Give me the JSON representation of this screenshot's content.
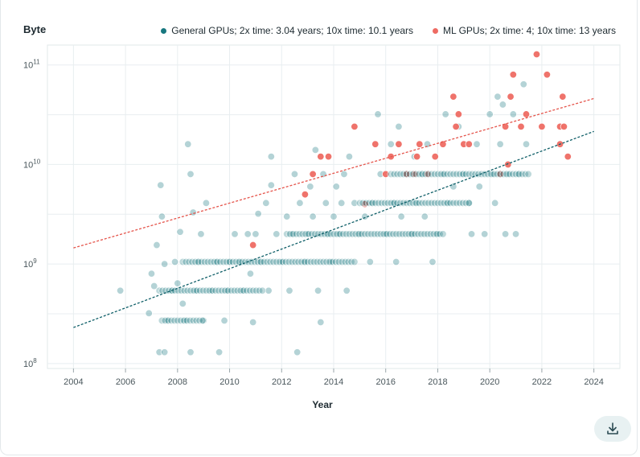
{
  "chart_data": {
    "type": "scatter",
    "title": "",
    "xlabel": "Year",
    "ylabel": "Byte",
    "xlim": [
      2003,
      2025
    ],
    "ylim_log10": [
      7.95,
      11.2
    ],
    "x_ticks": [
      2004,
      2006,
      2008,
      2010,
      2012,
      2014,
      2016,
      2018,
      2020,
      2022,
      2024
    ],
    "x_tick_labels": [
      "2004",
      "2006",
      "2008",
      "2010",
      "2012",
      "2014",
      "2016",
      "2018",
      "2020",
      "2022",
      "2024"
    ],
    "y_ticks": [
      {
        "exp": 8,
        "base": "10",
        "sup": "8"
      },
      {
        "exp": 9,
        "base": "10",
        "sup": "9"
      },
      {
        "exp": 10,
        "base": "10",
        "sup": "10"
      },
      {
        "exp": 11,
        "base": "10",
        "sup": "11"
      }
    ],
    "legend": [
      {
        "name": "General GPUs; 2x time: 3.04 years; 10x time: 10.1 years",
        "color": "#17777f"
      },
      {
        "name": "ML GPUs; 2x time: 4; 10x time: 13 years",
        "color": "#ee6b63"
      }
    ],
    "series": [
      {
        "name": "General GPUs",
        "color": "#17777f",
        "trend": {
          "x": [
            2004,
            2024
          ],
          "y": [
            230000000.0,
            21500000000.0
          ]
        },
        "points": [
          [
            2005.8,
            540000000.0
          ],
          [
            2006.9,
            320000000.0
          ],
          [
            2007.0,
            800000000.0
          ],
          [
            2007.1,
            600000000.0
          ],
          [
            2007.2,
            1550000000.0
          ],
          [
            2007.3,
            130000000.0
          ],
          [
            2007.35,
            6200000000.0
          ],
          [
            2007.4,
            3000000000.0
          ],
          [
            2007.5,
            130000000.0
          ],
          [
            2007.5,
            1000000000.0
          ],
          [
            2007.6,
            270000000.0
          ],
          [
            2007.8,
            540000000.0
          ],
          [
            2007.9,
            1050000000.0
          ],
          [
            2008.0,
            640000000.0
          ],
          [
            2008.1,
            2100000000.0
          ],
          [
            2008.2,
            400000000.0
          ],
          [
            2008.3,
            270000000.0
          ],
          [
            2008.4,
            16000000000.0
          ],
          [
            2008.5,
            130000000.0
          ],
          [
            2008.5,
            8000000000.0
          ],
          [
            2008.6,
            3300000000.0
          ],
          [
            2008.7,
            540000000.0
          ],
          [
            2008.8,
            1050000000.0
          ],
          [
            2008.9,
            2000000000.0
          ],
          [
            2009.0,
            270000000.0
          ],
          [
            2009.1,
            4100000000.0
          ],
          [
            2009.3,
            540000000.0
          ],
          [
            2009.5,
            1050000000.0
          ],
          [
            2009.6,
            130000000.0
          ],
          [
            2009.8,
            270000000.0
          ],
          [
            2009.9,
            540000000.0
          ],
          [
            2010.0,
            1050000000.0
          ],
          [
            2010.2,
            2000000000.0
          ],
          [
            2010.4,
            1050000000.0
          ],
          [
            2010.5,
            540000000.0
          ],
          [
            2010.7,
            2000000000.0
          ],
          [
            2010.8,
            800000000.0
          ],
          [
            2010.9,
            260000000.0
          ],
          [
            2011.0,
            2000000000.0
          ],
          [
            2011.1,
            3200000000.0
          ],
          [
            2011.2,
            1050000000.0
          ],
          [
            2011.4,
            4100000000.0
          ],
          [
            2011.5,
            540000000.0
          ],
          [
            2011.6,
            6200000000.0
          ],
          [
            2011.6,
            12000000000.0
          ],
          [
            2011.8,
            2000000000.0
          ],
          [
            2012.0,
            1050000000.0
          ],
          [
            2012.2,
            3000000000.0
          ],
          [
            2012.3,
            540000000.0
          ],
          [
            2012.4,
            2000000000.0
          ],
          [
            2012.5,
            8000000000.0
          ],
          [
            2012.6,
            130000000.0
          ],
          [
            2012.7,
            4100000000.0
          ],
          [
            2012.9,
            1050000000.0
          ],
          [
            2013.0,
            2000000000.0
          ],
          [
            2013.1,
            6000000000.0
          ],
          [
            2013.2,
            3000000000.0
          ],
          [
            2013.3,
            14000000000.0
          ],
          [
            2013.4,
            540000000.0
          ],
          [
            2013.5,
            260000000.0
          ],
          [
            2013.6,
            8000000000.0
          ],
          [
            2013.7,
            4100000000.0
          ],
          [
            2013.8,
            2000000000.0
          ],
          [
            2013.9,
            1050000000.0
          ],
          [
            2014.0,
            3000000000.0
          ],
          [
            2014.1,
            6000000000.0
          ],
          [
            2014.2,
            2000000000.0
          ],
          [
            2014.3,
            4100000000.0
          ],
          [
            2014.4,
            8000000000.0
          ],
          [
            2014.5,
            540000000.0
          ],
          [
            2014.6,
            12000000000.0
          ],
          [
            2014.8,
            4100000000.0
          ],
          [
            2015.0,
            2000000000.0
          ],
          [
            2015.2,
            3000000000.0
          ],
          [
            2015.4,
            1050000000.0
          ],
          [
            2015.5,
            4100000000.0
          ],
          [
            2015.7,
            32000000000.0
          ],
          [
            2015.8,
            8000000000.0
          ],
          [
            2016.0,
            2000000000.0
          ],
          [
            2016.2,
            16000000000.0
          ],
          [
            2016.3,
            4100000000.0
          ],
          [
            2016.4,
            1050000000.0
          ],
          [
            2016.5,
            24000000000.0
          ],
          [
            2016.6,
            3000000000.0
          ],
          [
            2016.8,
            8000000000.0
          ],
          [
            2017.0,
            2000000000.0
          ],
          [
            2017.1,
            12000000000.0
          ],
          [
            2017.2,
            4100000000.0
          ],
          [
            2017.4,
            8000000000.0
          ],
          [
            2017.5,
            3000000000.0
          ],
          [
            2017.6,
            16000000000.0
          ],
          [
            2017.8,
            1050000000.0
          ],
          [
            2018.0,
            2000000000.0
          ],
          [
            2018.2,
            8000000000.0
          ],
          [
            2018.3,
            32000000000.0
          ],
          [
            2018.4,
            4100000000.0
          ],
          [
            2018.6,
            6000000000.0
          ],
          [
            2018.8,
            24000000000.0
          ],
          [
            2019.0,
            8000000000.0
          ],
          [
            2019.2,
            4100000000.0
          ],
          [
            2019.3,
            2000000000.0
          ],
          [
            2019.5,
            16000000000.0
          ],
          [
            2019.6,
            6000000000.0
          ],
          [
            2019.8,
            2000000000.0
          ],
          [
            2020.0,
            32000000000.0
          ],
          [
            2020.1,
            8000000000.0
          ],
          [
            2020.2,
            4100000000.0
          ],
          [
            2020.3,
            48000000000.0
          ],
          [
            2020.4,
            16000000000.0
          ],
          [
            2020.5,
            40000000000.0
          ],
          [
            2020.6,
            2000000000.0
          ],
          [
            2020.7,
            8000000000.0
          ],
          [
            2020.9,
            32000000000.0
          ],
          [
            2021.0,
            2000000000.0
          ],
          [
            2021.1,
            8000000000.0
          ],
          [
            2021.3,
            64000000000.0
          ],
          [
            2021.4,
            16000000000.0
          ]
        ]
      },
      {
        "name": "ML GPUs",
        "color": "#ee6b63",
        "trend": {
          "x": [
            2004,
            2024
          ],
          "y": [
            1450000000.0,
            46000000000.0
          ]
        },
        "points": [
          [
            2010.9,
            1550000000.0
          ],
          [
            2012.9,
            5000000000.0
          ],
          [
            2013.2,
            8000000000.0
          ],
          [
            2013.5,
            12000000000.0
          ],
          [
            2013.8,
            12000000000.0
          ],
          [
            2014.8,
            24000000000.0
          ],
          [
            2015.2,
            4000000000.0
          ],
          [
            2015.6,
            16000000000.0
          ],
          [
            2016.0,
            8000000000.0
          ],
          [
            2016.2,
            12000000000.0
          ],
          [
            2016.5,
            16000000000.0
          ],
          [
            2016.8,
            8000000000.0
          ],
          [
            2017.1,
            8000000000.0
          ],
          [
            2017.2,
            12000000000.0
          ],
          [
            2017.3,
            16000000000.0
          ],
          [
            2017.6,
            8000000000.0
          ],
          [
            2017.9,
            12000000000.0
          ],
          [
            2018.2,
            16000000000.0
          ],
          [
            2018.6,
            48000000000.0
          ],
          [
            2018.7,
            24000000000.0
          ],
          [
            2018.8,
            32000000000.0
          ],
          [
            2019.0,
            16000000000.0
          ],
          [
            2019.2,
            16000000000.0
          ],
          [
            2020.4,
            8000000000.0
          ],
          [
            2020.6,
            24000000000.0
          ],
          [
            2020.7,
            10000000000.0
          ],
          [
            2020.8,
            48000000000.0
          ],
          [
            2020.9,
            80000000000.0
          ],
          [
            2021.2,
            24000000000.0
          ],
          [
            2021.4,
            32000000000.0
          ],
          [
            2021.8,
            128000000000.0
          ],
          [
            2022.0,
            24000000000.0
          ],
          [
            2022.2,
            80000000000.0
          ],
          [
            2022.7,
            16000000000.0
          ],
          [
            2022.7,
            24000000000.0
          ],
          [
            2022.8,
            48000000000.0
          ],
          [
            2022.85,
            24000000000.0
          ],
          [
            2023.0,
            12000000000.0
          ]
        ]
      }
    ]
  },
  "ui": {
    "download_icon": "download-icon"
  }
}
